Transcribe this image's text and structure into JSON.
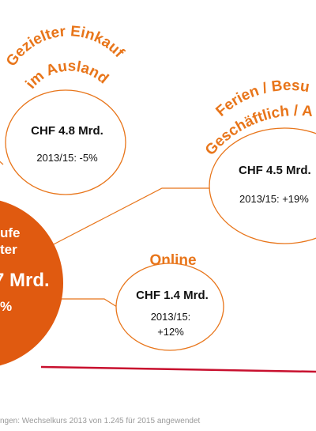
{
  "colors": {
    "accent_orange": "#e8751a",
    "dark_orange": "#e05a10",
    "red_line": "#c8102e",
    "text": "#111111",
    "footnote": "#9a9a9a"
  },
  "center": {
    "line1": "ufe",
    "line2": "ter",
    "amount": "7 Mrd.",
    "pct": "%"
  },
  "nodes": {
    "ausland": {
      "title_line1": "Gezielter Einkauf",
      "title_line2": "im Ausland",
      "amount": "CHF 4.8 Mrd.",
      "change": "2013/15: -5%"
    },
    "ferien": {
      "title_line1": "Ferien / Besu",
      "title_line2": "Geschäftlich / A",
      "amount": "CHF 4.5 Mrd.",
      "change": "2013/15: +19%"
    },
    "online": {
      "title": "Online",
      "amount": "CHF 1.4 Mrd.",
      "change_line1": "2013/15:",
      "change_line2": "+12%"
    }
  },
  "footnote": "ngen: Wechselkurs 2013 von 1.245 für 2015 angewendet"
}
